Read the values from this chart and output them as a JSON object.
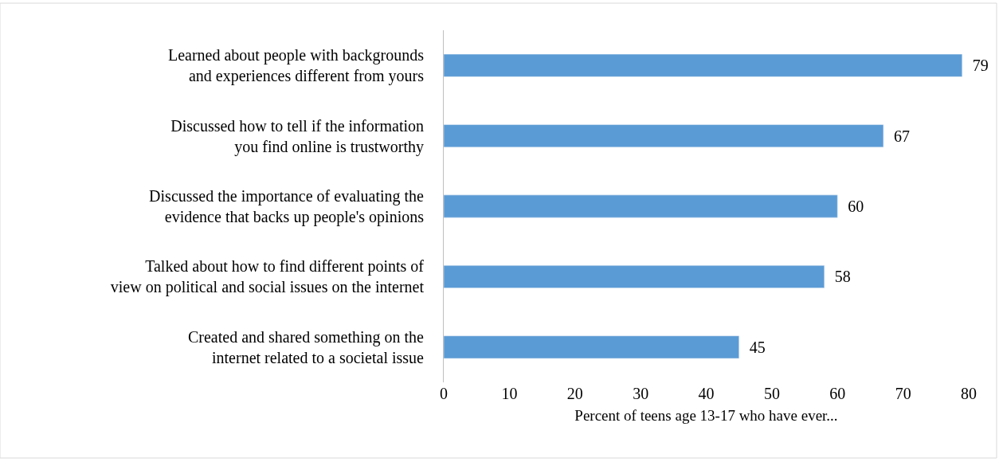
{
  "chart_data": {
    "type": "bar",
    "orientation": "horizontal",
    "xlabel": "Percent of teens age 13-17 who have ever...",
    "categories": [
      "Learned about people with backgrounds\nand experiences different from yours",
      "Discussed how to tell if the information\nyou find online is trustworthy",
      "Discussed the importance of evaluating the\nevidence that backs up people's opinions",
      "Talked about how to find different points of\nview on political and social issues on the internet",
      "Created and shared something on the\ninternet related to a societal issue"
    ],
    "values": [
      79,
      67,
      60,
      58,
      45
    ],
    "color": "#5b9bd5",
    "data_labels": true,
    "xlim": [
      0,
      80
    ],
    "xticks": [
      0,
      10,
      20,
      30,
      40,
      50,
      60,
      70,
      80
    ],
    "legend": false
  }
}
